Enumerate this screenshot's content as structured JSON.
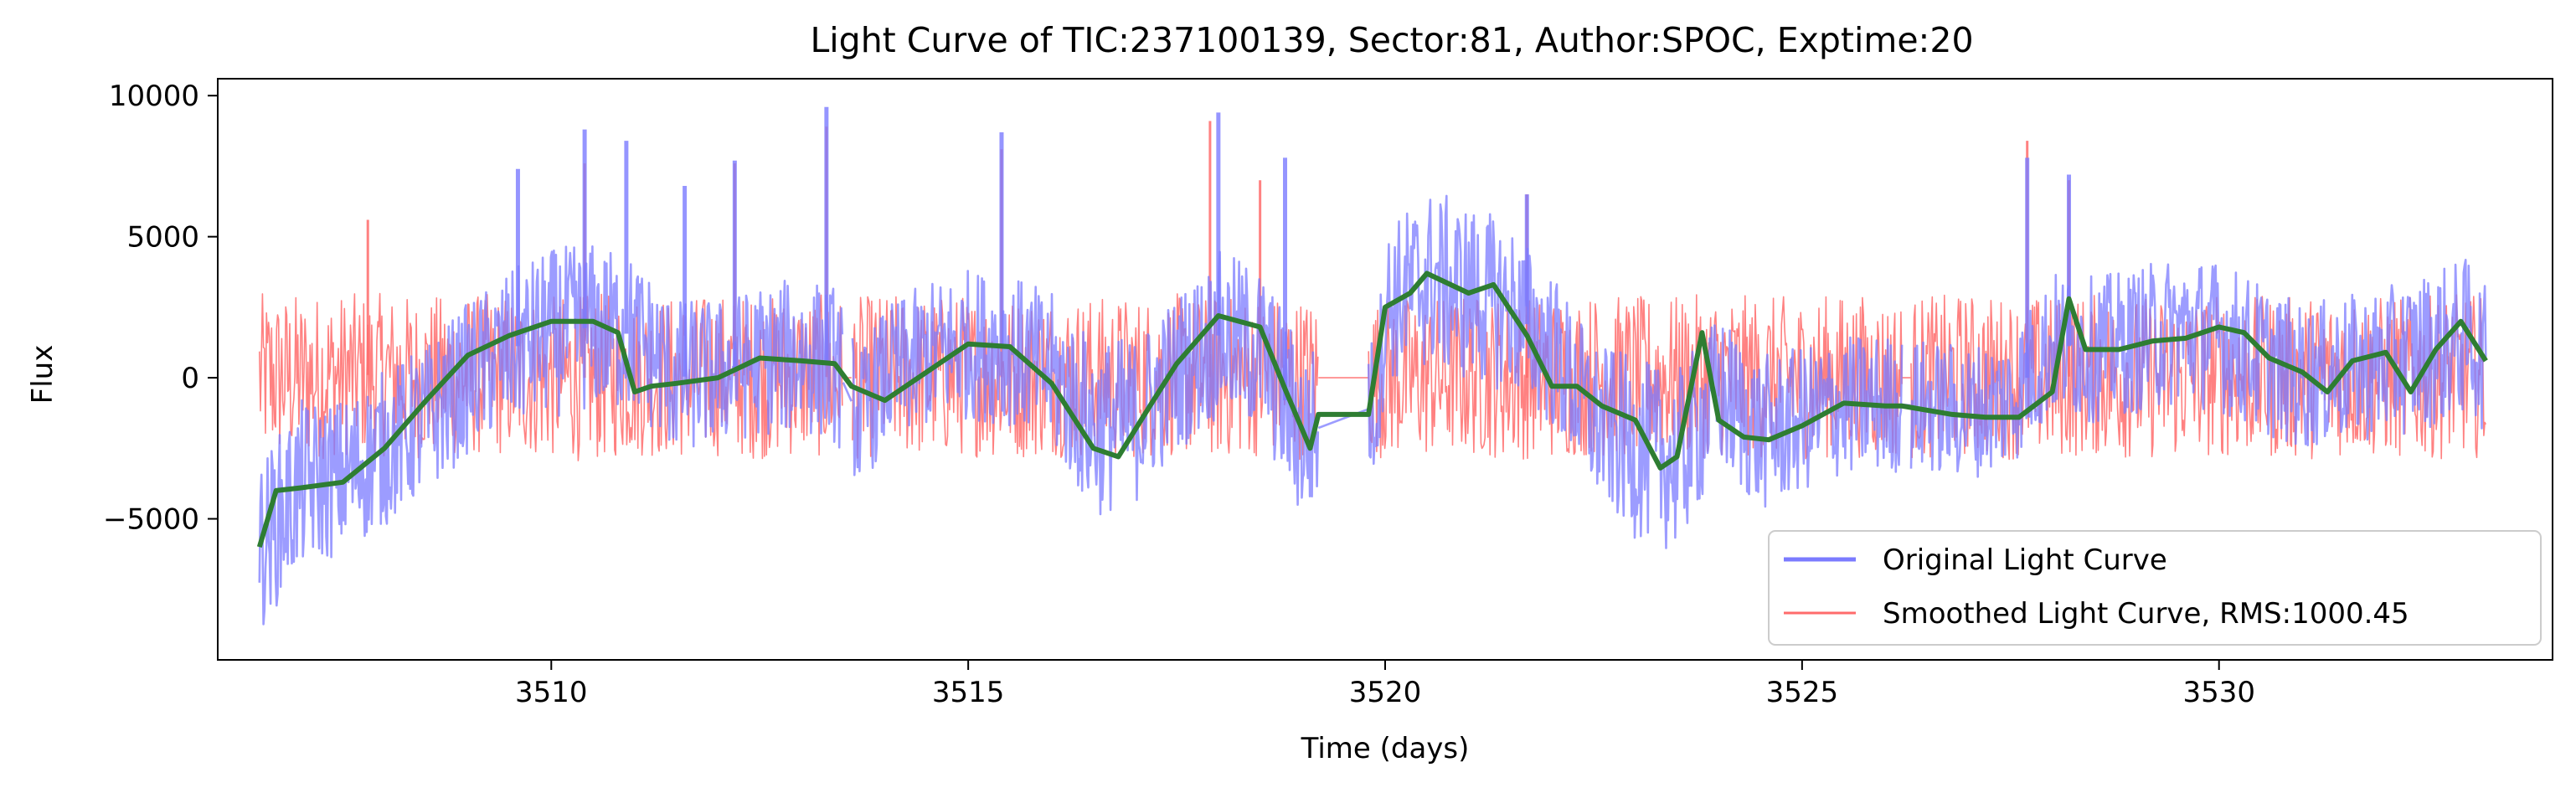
{
  "chart_data": {
    "type": "line",
    "title": "Light Curve of TIC:237100139, Sector:81, Author:SPOC, Exptime:20",
    "xlabel": "Time (days)",
    "ylabel": "Flux",
    "xlim": [
      3506.0,
      3534.0
    ],
    "ylim": [
      -10000,
      10600
    ],
    "x_ticks": [
      3510,
      3515,
      3520,
      3525,
      3530
    ],
    "x_tick_labels": [
      "3510",
      "3515",
      "3520",
      "3525",
      "3530"
    ],
    "y_ticks": [
      -5000,
      0,
      5000,
      10000
    ],
    "y_tick_labels": [
      "−5000",
      "0",
      "5000",
      "10000"
    ],
    "grid": false,
    "legend_position": "lower-right",
    "gaps": [
      [
        3513.5,
        3513.6
      ],
      [
        3519.2,
        3519.8
      ],
      [
        3526.2,
        3526.3
      ]
    ],
    "series": [
      {
        "name": "Original Light Curve",
        "color": "#7b7bff",
        "x": [
          3506.5,
          3507.0,
          3507.5,
          3508.0,
          3508.5,
          3509.0,
          3509.5,
          3510.0,
          3510.5,
          3511.0,
          3511.5,
          3512.0,
          3512.5,
          3513.0,
          3513.4,
          3513.7,
          3514.0,
          3514.5,
          3515.0,
          3515.5,
          3516.0,
          3516.5,
          3517.0,
          3517.5,
          3518.0,
          3518.5,
          3519.0,
          3519.9,
          3520.0,
          3520.5,
          3521.0,
          3521.5,
          3522.0,
          3522.5,
          3523.0,
          3523.5,
          3524.0,
          3524.5,
          3525.0,
          3525.5,
          3526.0,
          3526.4,
          3527.0,
          3527.5,
          3528.0,
          3528.5,
          3529.0,
          3529.5,
          3530.0,
          3530.5,
          3531.0,
          3531.5,
          3532.0,
          3532.5,
          3533.0,
          3533.2
        ],
        "center": [
          -6000,
          -3800,
          -3500,
          -2500,
          -1500,
          0,
          1000,
          1600,
          1800,
          1500,
          0,
          200,
          600,
          800,
          500,
          -1500,
          0,
          800,
          1200,
          1000,
          200,
          -1800,
          -1500,
          200,
          1500,
          1000,
          -2000,
          -1000,
          2500,
          3500,
          3000,
          2500,
          1000,
          -1500,
          -2500,
          -3000,
          -500,
          -2000,
          -1500,
          -1000,
          -900,
          -1000,
          -1200,
          -800,
          1200,
          1000,
          1300,
          1700,
          1500,
          700,
          0,
          300,
          500,
          1000,
          1500,
          600
        ],
        "amplitude": [
          3000,
          3000,
          2800,
          2800,
          2700,
          2700,
          2800,
          3000,
          3000,
          2800,
          2800,
          2600,
          2700,
          2800,
          2800,
          2500,
          2500,
          2600,
          2700,
          2700,
          2800,
          3200,
          3000,
          2800,
          3000,
          3000,
          3200,
          2500,
          2800,
          3200,
          3200,
          3000,
          2800,
          2800,
          3200,
          3200,
          2800,
          2800,
          2600,
          2500,
          2500,
          2400,
          2400,
          2400,
          2600,
          2600,
          2600,
          2700,
          2700,
          2700,
          2600,
          2600,
          2700,
          2800,
          2800,
          2600
        ],
        "spikes": [
          [
            3509.6,
            7400
          ],
          [
            3510.4,
            8800
          ],
          [
            3510.9,
            8400
          ],
          [
            3511.6,
            6800
          ],
          [
            3512.2,
            7700
          ],
          [
            3513.3,
            9600
          ],
          [
            3515.4,
            8700
          ],
          [
            3518.0,
            9400
          ],
          [
            3518.8,
            7800
          ],
          [
            3521.7,
            6500
          ],
          [
            3527.7,
            7800
          ],
          [
            3528.2,
            7200
          ]
        ]
      },
      {
        "name": "Smoothed Light Curve, RMS:1000.45",
        "color": "#ff6b6b",
        "x": [
          3506.5,
          3507.0,
          3507.5,
          3508.0,
          3508.5,
          3509.0,
          3509.5,
          3510.0,
          3510.5,
          3511.0,
          3511.5,
          3512.0,
          3512.5,
          3513.0,
          3513.4,
          3513.7,
          3514.0,
          3514.5,
          3515.0,
          3515.5,
          3516.0,
          3516.5,
          3517.0,
          3517.5,
          3518.0,
          3518.5,
          3519.0,
          3519.9,
          3520.0,
          3520.5,
          3521.0,
          3521.5,
          3522.0,
          3522.5,
          3523.0,
          3523.5,
          3524.0,
          3524.5,
          3525.0,
          3525.5,
          3526.0,
          3526.4,
          3527.0,
          3527.5,
          3528.0,
          3528.5,
          3529.0,
          3529.5,
          3530.0,
          3530.5,
          3531.0,
          3531.5,
          3532.0,
          3532.5,
          3533.0,
          3533.2
        ],
        "center": [
          0,
          0,
          100,
          100,
          0,
          100,
          100,
          0,
          0,
          100,
          0,
          100,
          0,
          100,
          0,
          0,
          100,
          0,
          100,
          0,
          100,
          0,
          0,
          100,
          0,
          100,
          0,
          0,
          0,
          0,
          100,
          0,
          0,
          100,
          0,
          0,
          100,
          0,
          0,
          100,
          0,
          0,
          100,
          0,
          0,
          100,
          0,
          0,
          100,
          0,
          0,
          100,
          0,
          0,
          100,
          0
        ],
        "amplitude": [
          3000,
          3000,
          2900,
          2900,
          2900,
          2900,
          2900,
          2900,
          3000,
          2900,
          2900,
          2900,
          2900,
          2900,
          2900,
          2900,
          2900,
          2900,
          2900,
          2900,
          2900,
          2900,
          2900,
          2900,
          2900,
          2900,
          2900,
          2800,
          2900,
          2900,
          2900,
          2900,
          2900,
          2900,
          2900,
          2900,
          2900,
          2900,
          2900,
          2900,
          2900,
          2900,
          2900,
          2900,
          2900,
          2900,
          2900,
          2900,
          2900,
          2900,
          2900,
          2900,
          2900,
          2900,
          2900,
          2900
        ],
        "spikes": [
          [
            3507.8,
            5600
          ],
          [
            3510.4,
            7600
          ],
          [
            3512.2,
            7600
          ],
          [
            3513.3,
            8900
          ],
          [
            3515.4,
            8100
          ],
          [
            3517.9,
            9100
          ],
          [
            3518.5,
            7000
          ],
          [
            3521.7,
            6500
          ],
          [
            3527.7,
            8400
          ],
          [
            3528.2,
            7000
          ]
        ]
      }
    ],
    "trend": {
      "color": "#2e7d32",
      "x": [
        3506.5,
        3506.7,
        3507.0,
        3507.5,
        3508.0,
        3508.5,
        3509.0,
        3509.5,
        3510.0,
        3510.5,
        3510.8,
        3511.0,
        3511.2,
        3511.5,
        3512.0,
        3512.5,
        3513.0,
        3513.4,
        3513.6,
        3514.0,
        3514.5,
        3515.0,
        3515.5,
        3516.0,
        3516.5,
        3516.8,
        3517.2,
        3517.5,
        3518.0,
        3518.5,
        3518.8,
        3519.1,
        3519.2,
        3519.8,
        3520.0,
        3520.3,
        3520.5,
        3521.0,
        3521.3,
        3521.7,
        3522.0,
        3522.3,
        3522.6,
        3523.0,
        3523.3,
        3523.5,
        3523.8,
        3524.0,
        3524.3,
        3524.6,
        3525.0,
        3525.5,
        3526.0,
        3526.2,
        3526.4,
        3526.8,
        3527.2,
        3527.6,
        3528.0,
        3528.2,
        3528.4,
        3528.8,
        3529.2,
        3529.6,
        3530.0,
        3530.3,
        3530.6,
        3531.0,
        3531.3,
        3531.6,
        3532.0,
        3532.3,
        3532.6,
        3532.9,
        3533.2
      ],
      "y": [
        -6000,
        -4000,
        -3900,
        -3700,
        -2500,
        -800,
        800,
        1500,
        2000,
        2000,
        1600,
        -500,
        -300,
        -200,
        0,
        700,
        600,
        500,
        -300,
        -800,
        200,
        1200,
        1100,
        -200,
        -2500,
        -2800,
        -900,
        500,
        2200,
        1800,
        -400,
        -2500,
        -1300,
        -1300,
        2500,
        3000,
        3700,
        3000,
        3300,
        1500,
        -300,
        -300,
        -1000,
        -1500,
        -3200,
        -2800,
        1600,
        -1500,
        -2100,
        -2200,
        -1700,
        -900,
        -1000,
        -1000,
        -1100,
        -1300,
        -1400,
        -1400,
        -500,
        2800,
        1000,
        1000,
        1300,
        1400,
        1800,
        1600,
        700,
        200,
        -500,
        600,
        900,
        -500,
        1000,
        2000,
        600
      ]
    }
  }
}
